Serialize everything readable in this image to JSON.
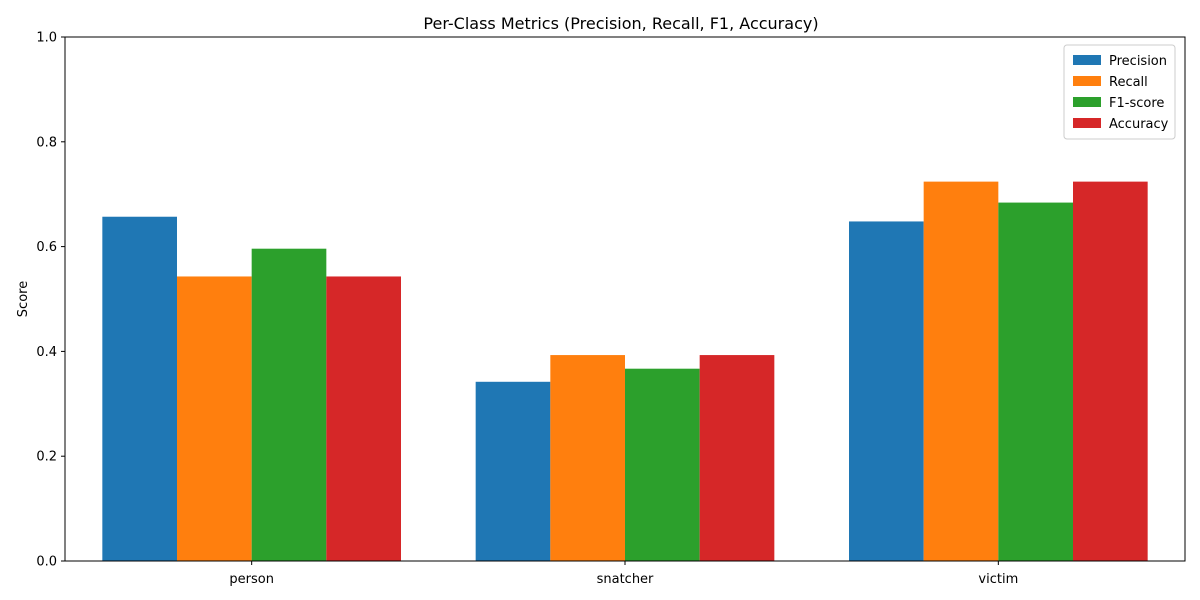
{
  "chart_data": {
    "type": "bar",
    "title": "Per-Class Metrics (Precision, Recall, F1, Accuracy)",
    "xlabel": "",
    "ylabel": "Score",
    "ylim": [
      0,
      1
    ],
    "yticks": [
      0.0,
      0.2,
      0.4,
      0.6,
      0.8,
      1.0
    ],
    "ytick_labels": [
      "0.0",
      "0.2",
      "0.4",
      "0.6",
      "0.8",
      "1.0"
    ],
    "categories": [
      "person",
      "snatcher",
      "victim"
    ],
    "series": [
      {
        "name": "Precision",
        "color": "#1f77b4",
        "values": [
          0.657,
          0.342,
          0.648
        ]
      },
      {
        "name": "Recall",
        "color": "#ff7f0e",
        "values": [
          0.543,
          0.393,
          0.724
        ]
      },
      {
        "name": "F1-score",
        "color": "#2ca02c",
        "values": [
          0.596,
          0.367,
          0.684
        ]
      },
      {
        "name": "Accuracy",
        "color": "#d62728",
        "values": [
          0.543,
          0.393,
          0.724
        ]
      }
    ],
    "legend_position": "top-right",
    "grid": false
  }
}
